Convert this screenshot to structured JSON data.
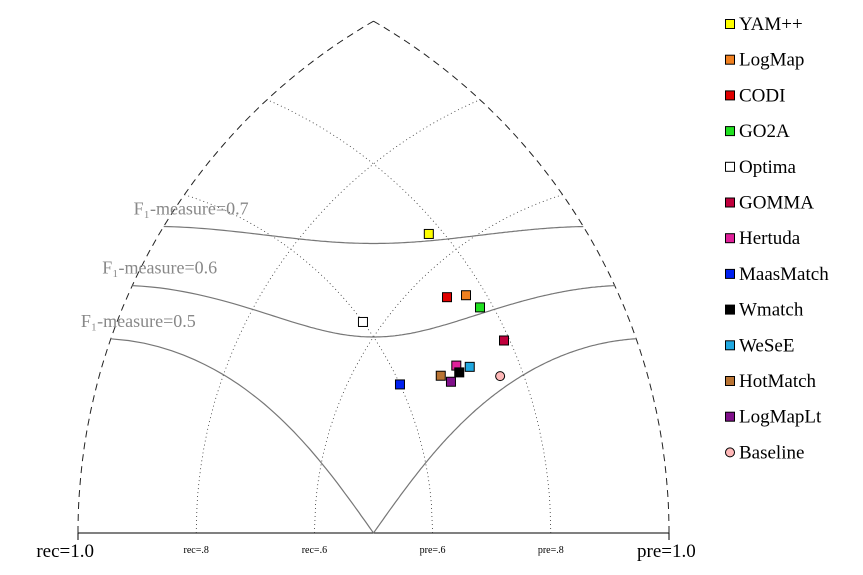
{
  "chart_data": {
    "type": "precision-recall-triangle",
    "series": [
      {
        "name": "YAM++",
        "color": "#ffff00",
        "marker": "square",
        "precision": 0.78,
        "recall": 0.649
      },
      {
        "name": "LogMap",
        "color": "#f08020",
        "marker": "square",
        "precision": 0.77,
        "recall": 0.529
      },
      {
        "name": "CODI",
        "color": "#e00000",
        "marker": "square",
        "precision": 0.741,
        "recall": 0.548
      },
      {
        "name": "GO2A",
        "color": "#20e020",
        "marker": "square",
        "precision": 0.78,
        "recall": 0.498
      },
      {
        "name": "Optima",
        "color": "#ffffff",
        "marker": "square",
        "precision": 0.6,
        "recall": 0.629
      },
      {
        "name": "GOMMA",
        "color": "#c0003c",
        "marker": "square",
        "precision": 0.791,
        "recall": 0.429
      },
      {
        "name": "Hertuda",
        "color": "#e0209a",
        "marker": "square",
        "precision": 0.7,
        "recall": 0.458
      },
      {
        "name": "MaasMatch",
        "color": "#0020f0",
        "marker": "square",
        "precision": 0.6,
        "recall": 0.52
      },
      {
        "name": "Wmatch",
        "color": "#000000",
        "marker": "square",
        "precision": 0.7,
        "recall": 0.447
      },
      {
        "name": "WeSeE",
        "color": "#20a8e0",
        "marker": "square",
        "precision": 0.72,
        "recall": 0.439
      },
      {
        "name": "HotMatch",
        "color": "#b87333",
        "marker": "square",
        "precision": 0.669,
        "recall": 0.469
      },
      {
        "name": "LogMapLt",
        "color": "#80108a",
        "marker": "square",
        "precision": 0.681,
        "recall": 0.449
      },
      {
        "name": "Baseline",
        "color": "#ffb8b8",
        "marker": "circle",
        "precision": 0.762,
        "recall": 0.39
      }
    ],
    "f_measure_lines": [
      {
        "value": 0.7,
        "label": "F₁-measure=0.7"
      },
      {
        "value": 0.6,
        "label": "F₁-measure=0.6"
      },
      {
        "value": 0.5,
        "label": "F₁-measure=0.5"
      }
    ],
    "recall_ticks": [
      {
        "value": 1.0,
        "label": "rec=1.0"
      },
      {
        "value": 0.8,
        "label": "rec=.8"
      },
      {
        "value": 0.6,
        "label": "rec=.6"
      }
    ],
    "precision_ticks": [
      {
        "value": 0.6,
        "label": "pre=.6"
      },
      {
        "value": 0.8,
        "label": "pre=.8"
      },
      {
        "value": 1.0,
        "label": "pre=1.0"
      }
    ]
  }
}
